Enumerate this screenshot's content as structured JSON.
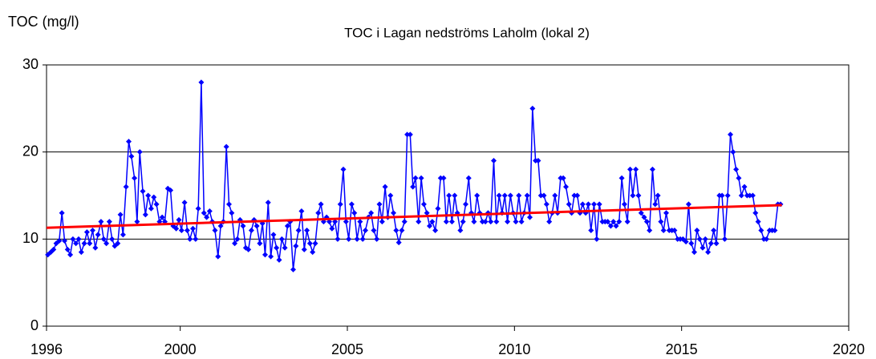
{
  "chart_data": {
    "type": "line",
    "title": "TOC i Lagan nedströms Laholm (lokal 2)",
    "y_label": "TOC  (mg/l)",
    "xlim": [
      1996,
      2020
    ],
    "xticks": [
      1996,
      2000,
      2005,
      2010,
      2015,
      2020
    ],
    "ylim": [
      0,
      30
    ],
    "yticks": [
      0,
      10,
      20,
      30
    ],
    "grid": true,
    "series": [
      {
        "color": "#0000ff",
        "marker": "diamond",
        "x": [
          1996.04,
          1996.13,
          1996.21,
          1996.29,
          1996.38,
          1996.46,
          1996.54,
          1996.63,
          1996.71,
          1996.79,
          1996.88,
          1996.96,
          1997.04,
          1997.13,
          1997.21,
          1997.29,
          1997.38,
          1997.46,
          1997.54,
          1997.63,
          1997.71,
          1997.79,
          1997.88,
          1997.96,
          1998.04,
          1998.13,
          1998.21,
          1998.29,
          1998.38,
          1998.46,
          1998.54,
          1998.63,
          1998.71,
          1998.79,
          1998.88,
          1998.96,
          1999.04,
          1999.13,
          1999.21,
          1999.29,
          1999.38,
          1999.46,
          1999.54,
          1999.63,
          1999.71,
          1999.79,
          1999.88,
          1999.96,
          2000.04,
          2000.13,
          2000.21,
          2000.29,
          2000.38,
          2000.46,
          2000.54,
          2000.63,
          2000.71,
          2000.79,
          2000.88,
          2000.96,
          2001.04,
          2001.13,
          2001.21,
          2001.29,
          2001.38,
          2001.46,
          2001.54,
          2001.63,
          2001.71,
          2001.79,
          2001.88,
          2001.96,
          2002.04,
          2002.13,
          2002.21,
          2002.29,
          2002.38,
          2002.46,
          2002.54,
          2002.63,
          2002.71,
          2002.79,
          2002.88,
          2002.96,
          2003.04,
          2003.13,
          2003.21,
          2003.29,
          2003.38,
          2003.46,
          2003.54,
          2003.63,
          2003.71,
          2003.79,
          2003.88,
          2003.96,
          2004.04,
          2004.13,
          2004.21,
          2004.29,
          2004.38,
          2004.46,
          2004.54,
          2004.63,
          2004.71,
          2004.79,
          2004.88,
          2004.96,
          2005.04,
          2005.13,
          2005.21,
          2005.29,
          2005.38,
          2005.46,
          2005.54,
          2005.63,
          2005.71,
          2005.79,
          2005.88,
          2005.96,
          2006.04,
          2006.13,
          2006.21,
          2006.29,
          2006.38,
          2006.46,
          2006.54,
          2006.63,
          2006.71,
          2006.79,
          2006.88,
          2006.96,
          2007.04,
          2007.13,
          2007.21,
          2007.29,
          2007.38,
          2007.46,
          2007.54,
          2007.63,
          2007.71,
          2007.79,
          2007.88,
          2007.96,
          2008.04,
          2008.13,
          2008.21,
          2008.29,
          2008.38,
          2008.46,
          2008.54,
          2008.63,
          2008.71,
          2008.79,
          2008.88,
          2008.96,
          2009.04,
          2009.13,
          2009.21,
          2009.29,
          2009.38,
          2009.46,
          2009.54,
          2009.63,
          2009.71,
          2009.79,
          2009.88,
          2009.96,
          2010.04,
          2010.13,
          2010.21,
          2010.29,
          2010.38,
          2010.46,
          2010.54,
          2010.63,
          2010.71,
          2010.79,
          2010.88,
          2010.96,
          2011.04,
          2011.13,
          2011.21,
          2011.29,
          2011.38,
          2011.46,
          2011.54,
          2011.63,
          2011.71,
          2011.79,
          2011.88,
          2011.96,
          2012.04,
          2012.13,
          2012.21,
          2012.29,
          2012.38,
          2012.46,
          2012.54,
          2012.63,
          2012.71,
          2012.79,
          2012.88,
          2012.96,
          2013.04,
          2013.13,
          2013.21,
          2013.29,
          2013.38,
          2013.46,
          2013.54,
          2013.63,
          2013.71,
          2013.79,
          2013.88,
          2013.96,
          2014.04,
          2014.13,
          2014.21,
          2014.29,
          2014.38,
          2014.46,
          2014.54,
          2014.63,
          2014.71,
          2014.79,
          2014.88,
          2014.96,
          2015.04,
          2015.13,
          2015.21,
          2015.29,
          2015.38,
          2015.46,
          2015.54,
          2015.63,
          2015.71,
          2015.79,
          2015.88,
          2015.96,
          2016.04,
          2016.13,
          2016.21,
          2016.29,
          2016.38,
          2016.46,
          2016.54,
          2016.63,
          2016.71,
          2016.79,
          2016.88,
          2016.96,
          2017.04,
          2017.13,
          2017.21,
          2017.29,
          2017.38,
          2017.46,
          2017.54,
          2017.63,
          2017.71,
          2017.79,
          2017.88,
          2017.96
        ],
        "values": [
          8.2,
          8.5,
          8.8,
          9.5,
          9.8,
          13,
          9.8,
          8.8,
          8.2,
          10,
          9.5,
          10,
          8.5,
          9.5,
          10.8,
          9.5,
          11,
          9,
          10.5,
          12,
          10,
          9.5,
          12,
          10,
          9.2,
          9.5,
          12.8,
          10.5,
          16,
          21.2,
          19.5,
          17,
          12,
          20,
          15.5,
          12.8,
          15,
          13.5,
          14.8,
          14,
          12,
          12.5,
          12,
          15.8,
          15.6,
          11.5,
          11.2,
          12.2,
          11,
          14.2,
          11,
          10,
          11.2,
          10,
          13.5,
          28,
          13,
          12.5,
          13.2,
          12,
          11,
          8,
          11.5,
          12,
          20.6,
          14,
          13,
          9.5,
          10,
          12.2,
          11.5,
          9,
          8.8,
          11,
          12.2,
          11.5,
          9.5,
          11.8,
          8.2,
          14.2,
          8,
          10.5,
          9,
          7.6,
          10,
          9,
          11.5,
          12,
          6.5,
          9.2,
          11,
          13.2,
          8.8,
          11,
          9.5,
          8.5,
          9.5,
          13,
          14,
          12,
          12.5,
          12,
          11.2,
          12,
          10,
          14,
          18,
          12,
          10,
          14,
          13,
          10,
          12,
          10,
          11,
          12.5,
          13,
          11,
          10,
          14,
          12,
          16,
          12.5,
          15,
          13,
          11,
          9.6,
          11,
          12,
          22,
          22,
          16,
          17,
          12,
          17,
          14,
          13,
          11.5,
          12,
          11,
          13.5,
          17,
          17,
          12,
          15,
          12,
          15,
          13,
          11,
          12,
          14,
          17,
          13,
          12,
          15,
          13,
          12,
          12,
          13,
          12,
          19,
          12,
          15,
          13,
          15,
          12,
          15,
          13,
          12,
          15,
          12,
          13,
          15,
          12.5,
          25,
          19,
          19,
          15,
          15,
          14,
          12,
          13,
          15,
          13,
          17,
          17,
          16,
          14,
          13,
          15,
          15,
          13,
          14,
          13,
          14,
          11,
          14,
          10,
          14,
          12,
          12,
          12,
          11.5,
          12,
          11.5,
          12,
          17,
          14,
          12,
          18,
          15,
          18,
          15,
          13,
          12.5,
          12,
          11,
          18,
          14,
          15,
          12,
          11,
          13,
          11,
          11,
          11,
          10,
          10,
          10,
          9.7,
          14,
          9.5,
          8.5,
          11,
          10,
          9,
          10,
          8.5,
          9.5,
          11,
          9.5,
          15,
          15,
          10,
          15,
          22,
          20,
          18,
          17,
          15,
          16,
          15,
          15,
          15,
          13,
          12,
          11,
          10,
          10,
          11,
          11,
          11,
          14,
          14
        ]
      },
      {
        "color": "#ff0000",
        "marker": "none",
        "x": [
          1996,
          2018
        ],
        "values": [
          11.3,
          13.9
        ]
      }
    ]
  }
}
